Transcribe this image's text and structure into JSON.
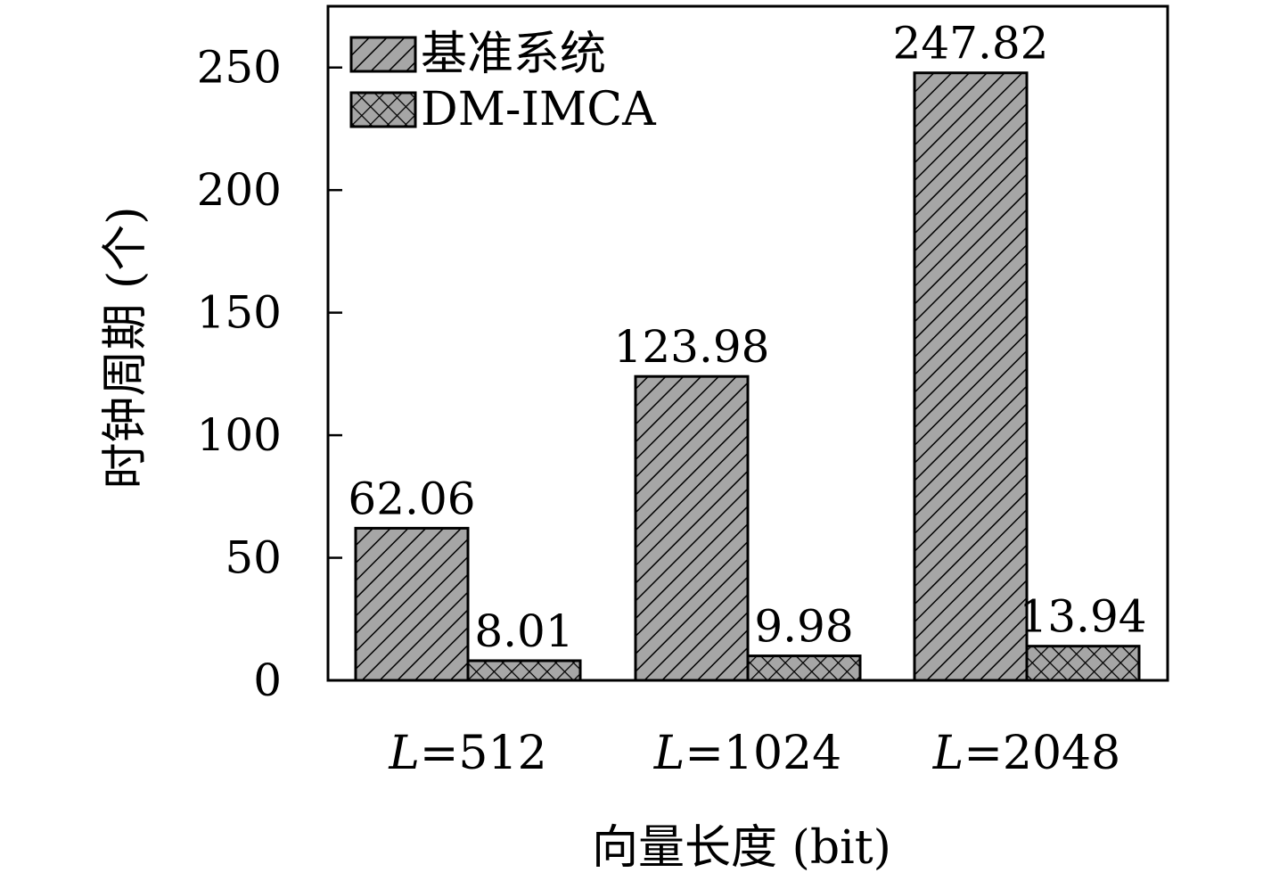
{
  "chart_data": {
    "type": "bar",
    "categories": [
      "L=512",
      "L=1024",
      "L=2048"
    ],
    "category_parts": [
      {
        "var": "L",
        "rest": "=512"
      },
      {
        "var": "L",
        "rest": "=1024"
      },
      {
        "var": "L",
        "rest": "=2048"
      }
    ],
    "series": [
      {
        "name": "基准系统",
        "values": [
          62.06,
          123.98,
          247.82
        ],
        "value_labels": [
          "62.06",
          "123.98",
          "247.82"
        ],
        "pattern": "diagonal-hatch",
        "fill": "#a6a6a6"
      },
      {
        "name": "DM-IMCA",
        "values": [
          8.01,
          9.98,
          13.94
        ],
        "value_labels": [
          "8.01",
          "9.98",
          "13.94"
        ],
        "pattern": "crosshatch",
        "fill": "#a6a6a6"
      }
    ],
    "xlabel": "向量长度 (bit)",
    "ylabel": "时钟周期 (个)",
    "ylim": [
      0,
      275
    ],
    "yticks": [
      0,
      50,
      100,
      150,
      200,
      250
    ],
    "legend_position": "top-left",
    "grid": false
  }
}
